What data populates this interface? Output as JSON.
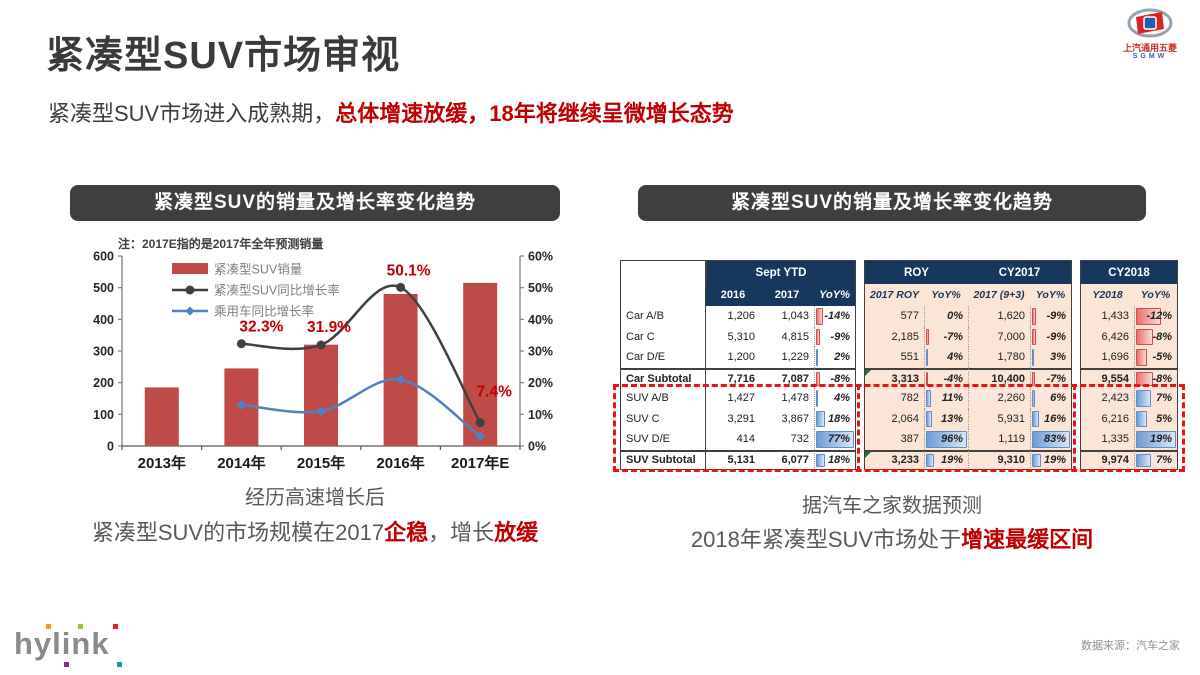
{
  "slide": {
    "title": "紧凑型SUV市场审视",
    "subtitle": {
      "plain": "紧凑型SUV市场进入成熟期，",
      "highlight": "总体增速放缓，18年将继续呈微增长态势"
    },
    "source": "数据来源：汽车之家"
  },
  "logos": {
    "sgmw": {
      "name": "上汽通用五菱",
      "abbr": "SGMW"
    },
    "agency": "hylink"
  },
  "left_panel": {
    "header": "紧凑型SUV的销量及增长率变化趋势",
    "caption1": "经历高速增长后",
    "caption2": {
      "g1": "紧凑型SUV的市场规模在2017",
      "r1": "企稳",
      "g2": "，增长",
      "r2": "放缓"
    }
  },
  "right_panel": {
    "header": "紧凑型SUV的销量及增长率变化趋势",
    "caption1": "据汽车之家数据预测",
    "caption2": {
      "g1": "2018年紧凑型SUV市场处于",
      "r1": "增速最缓区间"
    }
  },
  "chart_data": {
    "type": "bar+line",
    "title": "紧凑型SUV的销量及增长率变化趋势",
    "note": "注：2017E指的是2017年全年预测销量",
    "categories": [
      "2013年",
      "2014年",
      "2015年",
      "2016年",
      "2017年E"
    ],
    "left_axis": {
      "min": 0,
      "max": 600,
      "step": 100
    },
    "right_axis": {
      "min": 0,
      "max": 60,
      "step": 10,
      "suffix": "%"
    },
    "grid": false,
    "legend_position": "inside-top-left",
    "series": [
      {
        "name": "紧凑型SUV销量",
        "type": "bar",
        "axis": "left",
        "color": "#be4b48",
        "values": [
          185,
          245,
          320,
          480,
          515
        ]
      },
      {
        "name": "紧凑型SUV同比增长率",
        "type": "line",
        "axis": "right",
        "color": "#404040",
        "marker": "circle",
        "values": [
          null,
          32.3,
          31.9,
          50.1,
          7.4
        ]
      },
      {
        "name": "乘用车同比增长率",
        "type": "line",
        "axis": "right",
        "color": "#4e81bd",
        "marker": "diamond",
        "values": [
          null,
          13,
          11,
          21,
          3
        ]
      }
    ],
    "annotations": [
      {
        "category": "2014年",
        "text": "32.3%"
      },
      {
        "category": "2015年",
        "text": "31.9%"
      },
      {
        "category": "2016年",
        "text": "50.1%"
      },
      {
        "category": "2017年E",
        "text": "7.4%"
      }
    ]
  },
  "table": {
    "header_groups": [
      "Sept YTD",
      "ROY",
      "CY2017",
      "CY2018"
    ],
    "header_cols": [
      "2016",
      "2017",
      "YoY%",
      "2017 ROY",
      "YoY%",
      "2017 (9+3)",
      "YoY%",
      "Y2018",
      "YoY%"
    ],
    "rows": [
      {
        "label": "Car A/B",
        "cells": [
          "1,206",
          "1,043",
          "-14%",
          "577",
          "0%",
          "1,620",
          "-9%",
          "1,433",
          "-12%"
        ],
        "bold": false
      },
      {
        "label": "Car C",
        "cells": [
          "5,310",
          "4,815",
          "-9%",
          "2,185",
          "-7%",
          "7,000",
          "-9%",
          "6,426",
          "-8%"
        ],
        "bold": false
      },
      {
        "label": "Car D/E",
        "cells": [
          "1,200",
          "1,229",
          "2%",
          "551",
          "4%",
          "1,780",
          "3%",
          "1,696",
          "-5%"
        ],
        "bold": false
      },
      {
        "label": "Car Subtotal",
        "cells": [
          "7,716",
          "7,087",
          "-8%",
          "3,313",
          "-4%",
          "10,400",
          "-7%",
          "9,554",
          "-8%"
        ],
        "bold": true,
        "flag": 3
      },
      {
        "label": "SUV A/B",
        "cells": [
          "1,427",
          "1,478",
          "4%",
          "782",
          "11%",
          "2,260",
          "6%",
          "2,423",
          "7%"
        ],
        "bold": false
      },
      {
        "label": "SUV C",
        "cells": [
          "3,291",
          "3,867",
          "18%",
          "2,064",
          "13%",
          "5,931",
          "16%",
          "6,216",
          "5%"
        ],
        "bold": false
      },
      {
        "label": "SUV D/E",
        "cells": [
          "414",
          "732",
          "77%",
          "387",
          "96%",
          "1,119",
          "83%",
          "1,335",
          "19%"
        ],
        "bold": false
      },
      {
        "label": "SUV Subtotal",
        "cells": [
          "5,131",
          "6,077",
          "18%",
          "3,233",
          "19%",
          "9,310",
          "19%",
          "9,974",
          "7%"
        ],
        "bold": true,
        "flag": 3
      }
    ]
  },
  "colors": {
    "accent_red": "#c00000",
    "bar_red": "#be4b48",
    "line_dark": "#404040",
    "line_blue": "#4e81bd",
    "navy_header": "#17375d",
    "peach_bg": "#fbe5d6",
    "panel_header_bg": "#3f3f3f",
    "databar_pos": "#6f9cd4",
    "databar_neg": "#e9706c"
  }
}
